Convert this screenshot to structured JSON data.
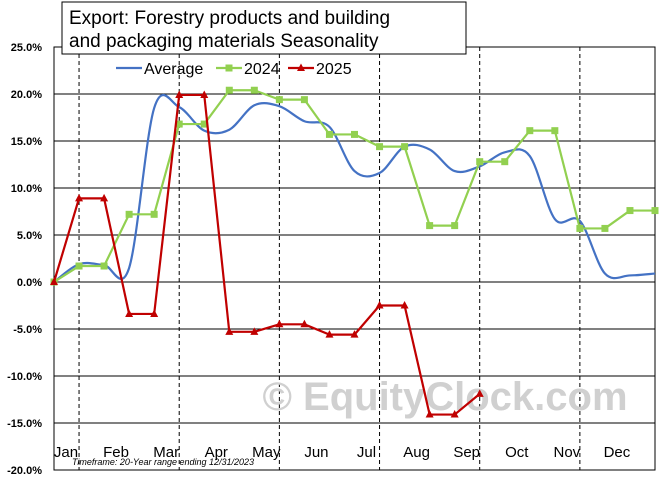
{
  "chart_data": {
    "type": "line",
    "title_line1": "Export: Forestry products and building",
    "title_line2": "and packaging materials Seasonality",
    "footnote": "Timeframe: 20-Year range ending 12/31/2023",
    "watermark": "© EquityClock.com",
    "x_labels": [
      "Jan",
      "Feb",
      "Mar",
      "Apr",
      "May",
      "Jun",
      "Jul",
      "Aug",
      "Sep",
      "Oct",
      "Nov",
      "Dec"
    ],
    "y_ticks": [
      "25.0%",
      "20.0%",
      "15.0%",
      "10.0%",
      "5.0%",
      "0.0%",
      "-5.0%",
      "-10.0%",
      "-15.0%",
      "-20.0%"
    ],
    "ylim": [
      -20,
      25
    ],
    "xlim": [
      0,
      12
    ],
    "legend_position": "top",
    "series": [
      {
        "name": "Average",
        "color": "#4472c4",
        "marker": "none",
        "x": [
          0,
          0.5,
          1.0,
          1.5,
          2.0,
          2.5,
          3.0,
          3.5,
          4.0,
          4.5,
          5.0,
          5.5,
          6.0,
          6.5,
          7.0,
          7.5,
          8.0,
          8.5,
          9.0,
          9.5,
          10.0,
          10.5,
          11.0,
          11.5,
          12.0
        ],
        "values": [
          0.0,
          1.9,
          1.8,
          1.5,
          18.5,
          18.6,
          16.1,
          16.2,
          18.8,
          18.7,
          17.1,
          16.5,
          11.8,
          11.6,
          14.4,
          14.1,
          11.8,
          12.3,
          13.8,
          13.4,
          6.7,
          6.5,
          0.9,
          0.7,
          0.9
        ]
      },
      {
        "name": "2024",
        "color": "#92d050",
        "marker": "square",
        "x": [
          0,
          0.5,
          1.0,
          1.5,
          2.0,
          2.5,
          3.0,
          3.5,
          4.0,
          4.5,
          5.0,
          5.5,
          6.0,
          6.5,
          7.0,
          7.5,
          8.0,
          8.5,
          9.0,
          9.5,
          10.0,
          10.5,
          11.0,
          11.5,
          12.0
        ],
        "values": [
          0.0,
          1.7,
          1.7,
          7.2,
          7.2,
          16.8,
          16.8,
          20.4,
          20.4,
          19.4,
          19.4,
          15.7,
          15.7,
          14.4,
          14.4,
          6.0,
          6.0,
          12.8,
          12.8,
          16.1,
          16.1,
          5.7,
          5.7,
          7.6,
          7.6
        ]
      },
      {
        "name": "2025",
        "color": "#c00000",
        "marker": "triangle",
        "x": [
          0,
          0.5,
          1.0,
          1.5,
          2.0,
          2.5,
          3.0,
          3.5,
          4.0,
          4.5,
          5.0,
          5.5,
          6.0,
          6.5,
          7.0,
          7.5,
          8.0,
          8.5
        ],
        "values": [
          0.0,
          8.9,
          8.9,
          -3.4,
          -3.4,
          19.9,
          19.9,
          -5.3,
          -5.3,
          -4.5,
          -4.5,
          -5.6,
          -5.6,
          -2.5,
          -2.5,
          -14.1,
          -14.1,
          -11.9
        ]
      }
    ]
  }
}
